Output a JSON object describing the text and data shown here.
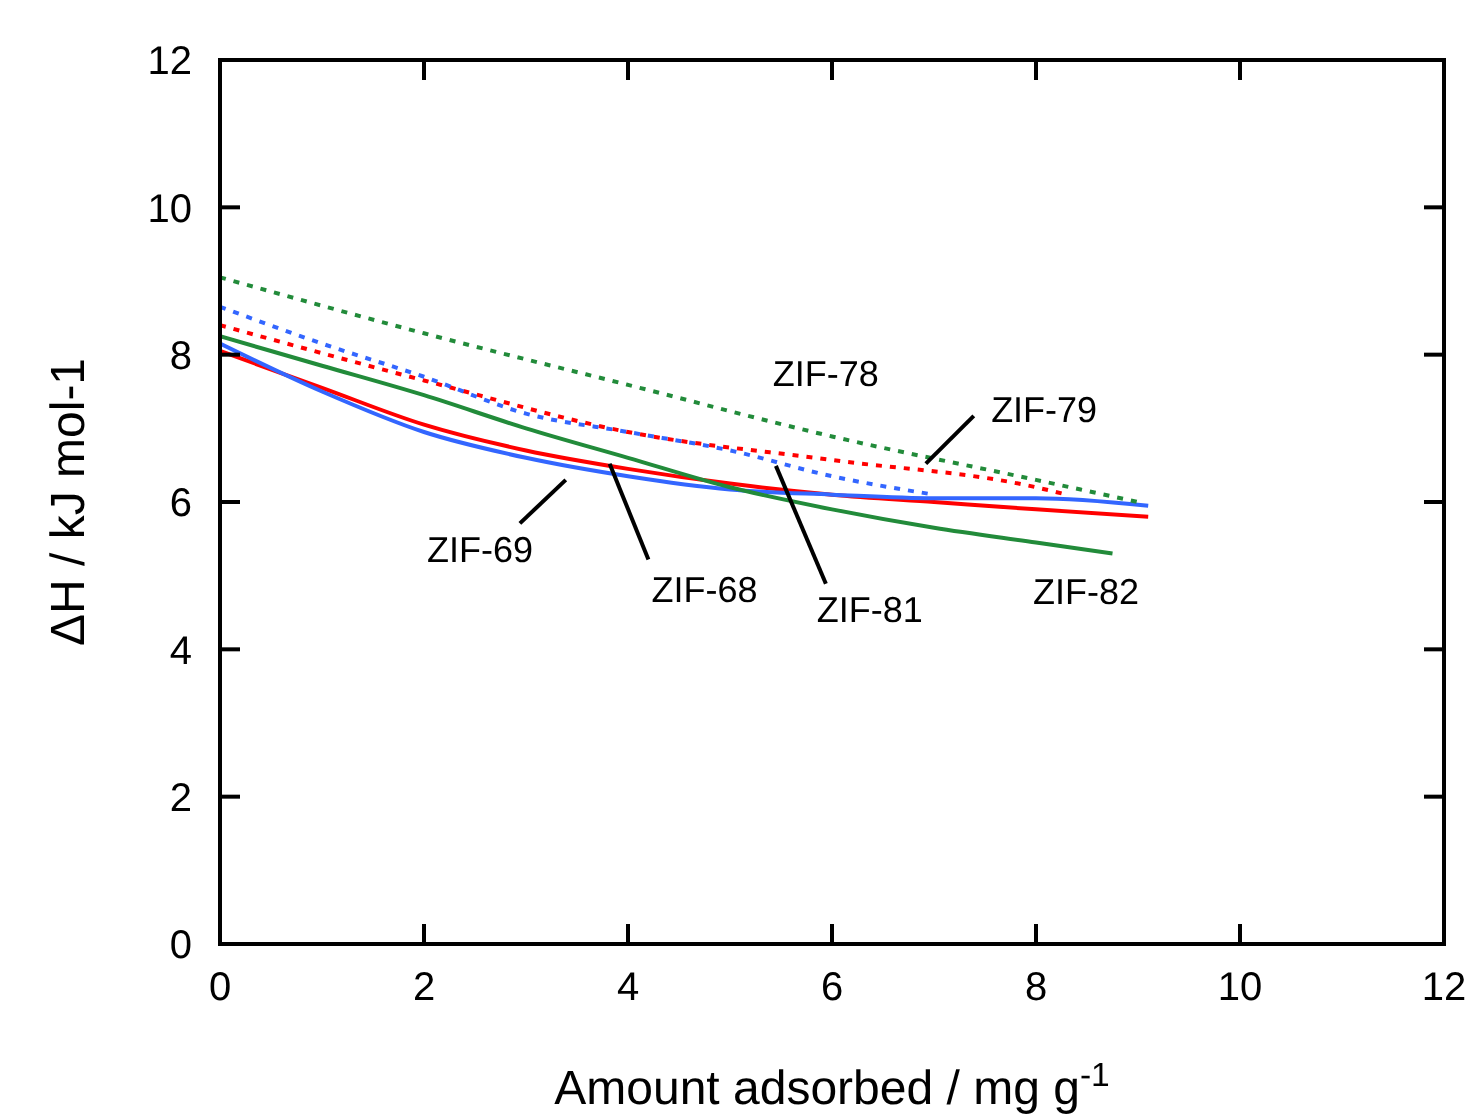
{
  "chart_data": {
    "type": "line",
    "xlabel": "Amount adsorbed / mg g$^{-1}$",
    "ylabel": "ΔH / kJ mol-1",
    "xlim": [
      0,
      12
    ],
    "xticks": [
      0,
      2,
      4,
      6,
      8,
      10,
      12
    ],
    "ylim": [
      0,
      12
    ],
    "yticks": [
      0,
      2,
      4,
      6,
      8,
      10,
      12
    ],
    "marker": "none",
    "series": [
      {
        "name": "ZIF-68",
        "color": "#ff0000",
        "line_style": "solid",
        "x": [
          0,
          1,
          2,
          3,
          4,
          5,
          6,
          7,
          8,
          9.1
        ],
        "values": [
          8.05,
          7.55,
          7.05,
          6.7,
          6.45,
          6.25,
          6.1,
          6.0,
          5.9,
          5.8
        ]
      },
      {
        "name": "ZIF-69",
        "color": "#3366ff",
        "line_style": "solid",
        "x": [
          0,
          1,
          2,
          3,
          4,
          5,
          6,
          7,
          8,
          9.1
        ],
        "values": [
          8.15,
          7.5,
          6.95,
          6.6,
          6.35,
          6.17,
          6.1,
          6.05,
          6.05,
          5.95
        ]
      },
      {
        "name": "ZIF-82",
        "color": "#228b3a",
        "line_style": "solid",
        "x": [
          0,
          1,
          2,
          3,
          4,
          5,
          6,
          7,
          8,
          8.75
        ],
        "values": [
          8.25,
          7.85,
          7.45,
          7.0,
          6.6,
          6.2,
          5.9,
          5.65,
          5.45,
          5.3
        ]
      },
      {
        "name": "ZIF-78",
        "color": "#228b3a",
        "line_style": "dotted",
        "x": [
          0,
          2,
          4,
          6,
          8,
          9.0
        ],
        "values": [
          9.05,
          8.29,
          7.59,
          6.89,
          6.3,
          6.0
        ]
      },
      {
        "name": "ZIF-79",
        "color": "#ff0000",
        "line_style": "dotted",
        "x": [
          0,
          2,
          4,
          6,
          8,
          8.3
        ],
        "values": [
          8.4,
          7.65,
          6.95,
          6.57,
          6.2,
          6.1
        ]
      },
      {
        "name": "ZIF-81",
        "color": "#3366ff",
        "line_style": "dotted",
        "x": [
          0,
          1,
          2,
          3,
          4,
          5,
          6,
          7
        ],
        "values": [
          8.65,
          8.15,
          7.7,
          7.2,
          6.95,
          6.7,
          6.35,
          6.1
        ]
      }
    ]
  }
}
